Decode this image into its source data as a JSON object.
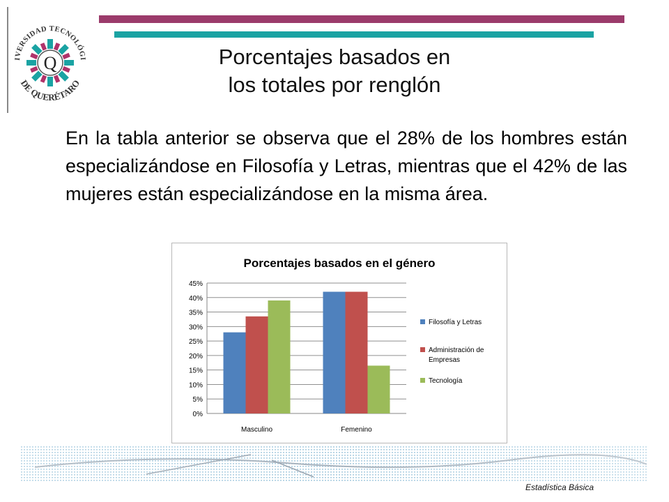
{
  "slide": {
    "title_line1": "Porcentajes basados en",
    "title_line2": "los totales por renglón",
    "body": "En la tabla anterior se observa que el 28% de los hombres están especializándose en Filosofía y Letras, mientras que el 42% de las mujeres están especializándose en la misma área.",
    "footer": "Estadística Básica"
  },
  "logo": {
    "top_text": "UNIVERSIDAD TECNOLÓGICA",
    "bottom_text": "DE QUERÉTARO",
    "center_letter": "Q"
  },
  "colors": {
    "accent_purple": "#9b3b6b",
    "accent_teal": "#1aa3a3"
  },
  "chart_data": {
    "type": "bar",
    "title": "Porcentajes basados en el género",
    "categories": [
      "Masculino",
      "Femenino"
    ],
    "series": [
      {
        "name": "Filosofía y Letras",
        "values": [
          28,
          42
        ],
        "color": "#4f81bd"
      },
      {
        "name": "Administración de Empresas",
        "values": [
          33.5,
          42
        ],
        "color": "#c0504d"
      },
      {
        "name": "Tecnología",
        "values": [
          39,
          16.5
        ],
        "color": "#9bbb59"
      }
    ],
    "ylim": [
      0,
      45
    ],
    "yticks": [
      "0%",
      "5%",
      "10%",
      "15%",
      "20%",
      "25%",
      "30%",
      "35%",
      "40%",
      "45%"
    ],
    "grid": true,
    "legend_position": "right"
  }
}
